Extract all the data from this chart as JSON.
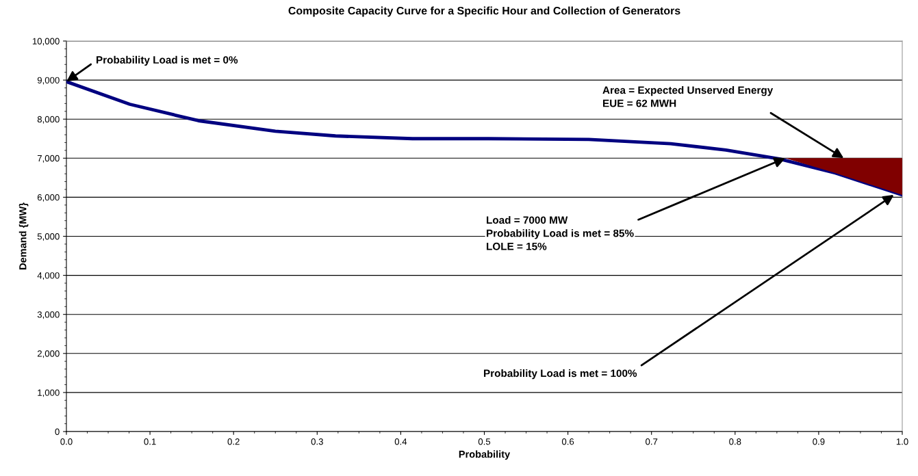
{
  "chart_data": {
    "type": "line",
    "title": "Composite Capacity Curve for a Specific Hour and Collection of Generators",
    "xlabel": "Probability",
    "ylabel": "Demand {MW}",
    "series": [
      {
        "color": "#000080",
        "x": [
          0.0,
          0.076,
          0.158,
          0.25,
          0.322,
          0.414,
          0.494,
          0.505,
          0.625,
          0.723,
          0.789,
          0.853,
          0.92,
          1.0
        ],
        "values": [
          8960,
          8380,
          7960,
          7690,
          7570,
          7500,
          7500,
          7500,
          7480,
          7370,
          7210,
          6980,
          6620,
          6060
        ]
      },
      {
        "type": "area",
        "color": "#800000",
        "x": [
          0.86,
          0.92,
          1.0,
          1.0
        ],
        "values": [
          7000,
          6620,
          6060,
          7000
        ]
      }
    ],
    "xlim": [
      0,
      1
    ],
    "xticks": [
      {
        "value": 0,
        "label": "0.0"
      },
      0.1,
      0.2,
      0.3,
      0.4,
      0.5,
      0.6,
      0.7,
      0.8,
      0.9,
      {
        "value": 1,
        "label": "1.0"
      }
    ],
    "ylim": [
      0,
      10000
    ],
    "yticks": [
      0,
      {
        "value": 1000,
        "label": "1,000"
      },
      {
        "value": 2000,
        "label": "2,000"
      },
      {
        "value": 3000,
        "label": "3,000"
      },
      {
        "value": 4000,
        "label": "4,000"
      },
      {
        "value": 5000,
        "label": "5,000"
      },
      {
        "value": 6000,
        "label": "6,000"
      },
      {
        "value": 7000,
        "label": "7,000"
      },
      {
        "value": 8000,
        "label": "8,000"
      },
      {
        "value": 9000,
        "label": "9,000"
      },
      {
        "value": 10000,
        "label": "10,000"
      }
    ],
    "grid": "y",
    "annotations": [
      {
        "text": "Probability Load is met = 0%",
        "x": 0,
        "y": 8960
      },
      {
        "text": "Area = Expected Unserved Energy\nEUE = 62 MWH",
        "x": 0.93,
        "y": 7000
      },
      {
        "text": "Load = 7000 MW\nProbability Load is met = 85%\nLOLE = 15%",
        "x": 0.86,
        "y": 7000
      },
      {
        "text": "Probability Load is met = 100%",
        "x": 0.99,
        "y": 6060
      }
    ]
  }
}
